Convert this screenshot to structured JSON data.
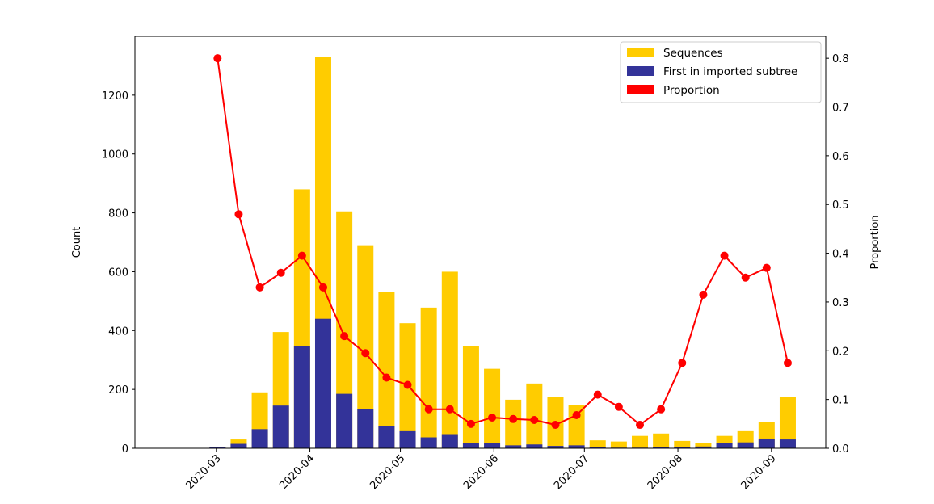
{
  "chart_data": {
    "type": "bar",
    "title": "",
    "xlabel": "",
    "ylabel": "Count",
    "y2label": "Proportion",
    "ylim": [
      0,
      1400
    ],
    "y2lim": [
      0,
      0.845
    ],
    "xlim": [
      "2020-02-03",
      "2020-09-19"
    ],
    "yticks": [
      0,
      200,
      400,
      600,
      800,
      1000,
      1200
    ],
    "y2ticks": [
      "0.0",
      "0.1",
      "0.2",
      "0.3",
      "0.4",
      "0.5",
      "0.6",
      "0.7",
      "0.8"
    ],
    "xticks": [
      "2020-03",
      "2020-04",
      "2020-05",
      "2020-06",
      "2020-07",
      "2020-08",
      "2020-09"
    ],
    "grid": false,
    "legend_position": "top-right",
    "colors": {
      "sequences": "#ffcc00",
      "first": "#333399",
      "proportion": "#ff0000"
    },
    "x": [
      "2020-03-01",
      "2020-03-08",
      "2020-03-15",
      "2020-03-22",
      "2020-03-29",
      "2020-04-05",
      "2020-04-12",
      "2020-04-19",
      "2020-04-26",
      "2020-05-03",
      "2020-05-10",
      "2020-05-17",
      "2020-05-24",
      "2020-05-31",
      "2020-06-07",
      "2020-06-14",
      "2020-06-21",
      "2020-06-28",
      "2020-07-05",
      "2020-07-12",
      "2020-07-19",
      "2020-07-26",
      "2020-08-02",
      "2020-08-09",
      "2020-08-16",
      "2020-08-23",
      "2020-08-30",
      "2020-09-06"
    ],
    "series": [
      {
        "name": "Sequences",
        "type": "bar",
        "axis": "left",
        "values": [
          5,
          30,
          190,
          395,
          880,
          1330,
          805,
          690,
          530,
          425,
          478,
          600,
          348,
          270,
          165,
          220,
          173,
          148,
          27,
          23,
          42,
          50,
          25,
          18,
          42,
          58,
          88,
          173
        ]
      },
      {
        "name": "First in imported subtree",
        "type": "bar",
        "axis": "left",
        "values": [
          4,
          15,
          65,
          145,
          348,
          440,
          185,
          133,
          75,
          58,
          37,
          48,
          17,
          17,
          10,
          13,
          8,
          10,
          3,
          2,
          2,
          4,
          4,
          6,
          17,
          20,
          33,
          30
        ]
      },
      {
        "name": "Proportion",
        "type": "line",
        "axis": "right",
        "values": [
          0.8,
          0.48,
          0.33,
          0.36,
          0.395,
          0.33,
          0.23,
          0.195,
          0.145,
          0.13,
          0.08,
          0.08,
          0.05,
          0.063,
          0.06,
          0.058,
          0.048,
          0.068,
          0.11,
          0.085,
          0.048,
          0.08,
          0.175,
          0.315,
          0.395,
          0.35,
          0.37,
          0.175
        ]
      }
    ]
  }
}
